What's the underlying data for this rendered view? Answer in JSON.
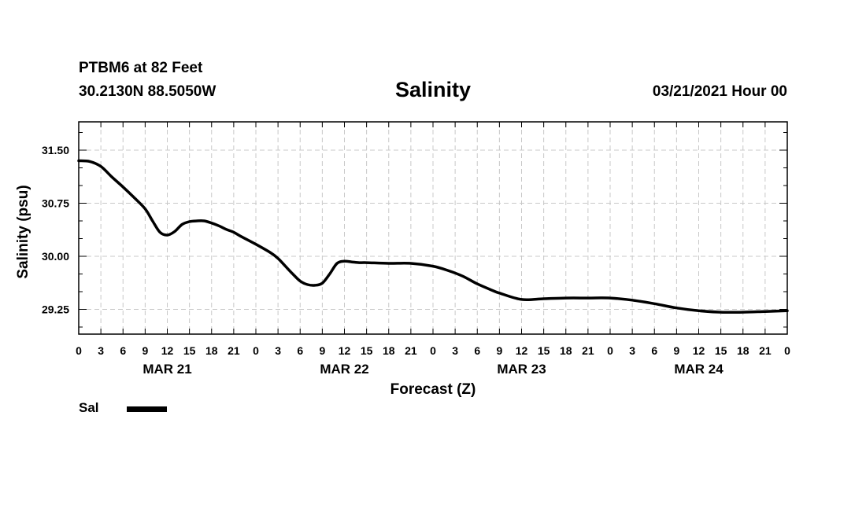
{
  "header": {
    "station": "PTBM6 at 82 Feet",
    "coords": "30.2130N 88.5050W",
    "title": "Salinity",
    "run_time": "03/21/2021 Hour 00"
  },
  "colors": {
    "line": "#000000",
    "grid": "#c8c8c8",
    "frame": "#000000"
  },
  "legend": {
    "label": "Sal"
  },
  "chart_data": {
    "type": "line",
    "title": "Salinity",
    "xlabel": "Forecast (Z)",
    "ylabel": "Salinity (psu)",
    "x_unit": "forecast hour",
    "xlim": [
      0,
      96
    ],
    "ylim": [
      28.9,
      31.9
    ],
    "x_ticks": [
      0,
      3,
      6,
      9,
      12,
      15,
      18,
      21,
      24,
      27,
      30,
      33,
      36,
      39,
      42,
      45,
      48,
      51,
      54,
      57,
      60,
      63,
      66,
      69,
      72,
      75,
      78,
      81,
      84,
      87,
      90,
      93,
      96
    ],
    "x_tick_labels": [
      "0",
      "3",
      "6",
      "9",
      "12",
      "15",
      "18",
      "21",
      "0",
      "3",
      "6",
      "9",
      "12",
      "15",
      "18",
      "21",
      "0",
      "3",
      "6",
      "9",
      "12",
      "15",
      "18",
      "21",
      "0",
      "3",
      "6",
      "9",
      "12",
      "15",
      "18",
      "21",
      "0"
    ],
    "y_ticks": [
      29.25,
      30.0,
      30.75,
      31.5
    ],
    "y_tick_labels": [
      "29.25",
      "30.00",
      "30.75",
      "31.50"
    ],
    "day_labels": [
      {
        "text": "MAR 21",
        "x": 12
      },
      {
        "text": "MAR 22",
        "x": 36
      },
      {
        "text": "MAR 23",
        "x": 60
      },
      {
        "text": "MAR 24",
        "x": 84
      }
    ],
    "grid": true,
    "legend_position": "bottom-left",
    "series": [
      {
        "name": "Sal",
        "x": [
          0,
          1.5,
          3,
          4.5,
          6,
          7.5,
          9,
          10,
          11,
          12,
          13,
          14,
          15,
          16,
          17,
          18,
          19,
          20,
          21,
          22,
          24,
          26,
          27,
          28,
          29,
          30,
          31,
          32,
          33,
          34,
          35,
          36,
          37,
          38,
          39,
          42,
          45,
          48,
          50,
          52,
          54,
          56,
          57,
          60,
          63,
          66,
          69,
          72,
          75,
          78,
          81,
          84,
          87,
          90,
          93,
          96
        ],
        "values": [
          31.35,
          31.34,
          31.27,
          31.12,
          30.98,
          30.83,
          30.67,
          30.5,
          30.34,
          30.3,
          30.35,
          30.45,
          30.49,
          30.5,
          30.5,
          30.47,
          30.43,
          30.38,
          30.34,
          30.28,
          30.17,
          30.05,
          29.97,
          29.86,
          29.75,
          29.65,
          29.6,
          29.59,
          29.62,
          29.75,
          29.9,
          29.93,
          29.92,
          29.91,
          29.91,
          29.9,
          29.9,
          29.86,
          29.8,
          29.72,
          29.61,
          29.52,
          29.48,
          29.39,
          29.4,
          29.41,
          29.41,
          29.41,
          29.38,
          29.33,
          29.27,
          29.23,
          29.21,
          29.21,
          29.22,
          29.23
        ]
      }
    ]
  }
}
